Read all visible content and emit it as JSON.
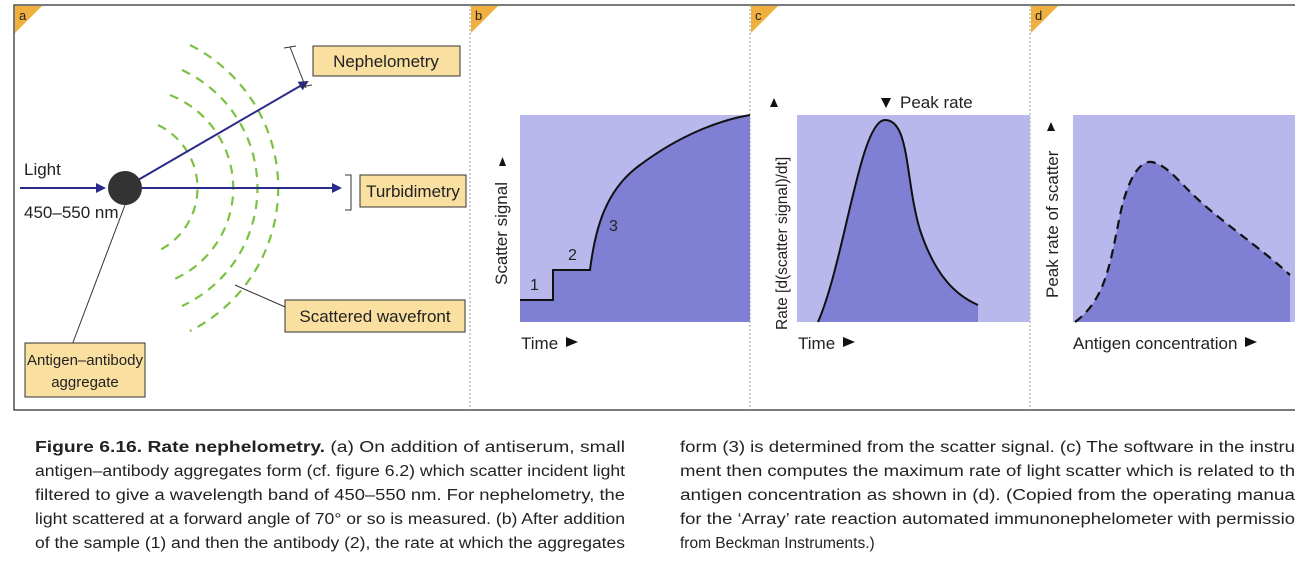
{
  "figure": {
    "panels": {
      "a": {
        "label": "a",
        "light": "Light",
        "wavelength": "450–550 nm",
        "nephelometry": "Nephelometry",
        "turbidimetry": "Turbidimetry",
        "wavefront": "Scattered wavefront",
        "aggregate": [
          "Antigen–antibody",
          "aggregate"
        ]
      },
      "b": {
        "label": "b",
        "y_axis": "Scatter signal",
        "x_axis": "Time",
        "steps": [
          "1",
          "2",
          "3"
        ]
      },
      "c": {
        "label": "c",
        "y_axis": "Rate [d(scatter signal)/dt]",
        "x_axis": "Time",
        "annotation": "Peak rate"
      },
      "d": {
        "label": "d",
        "y_axis": "Peak rate of scatter",
        "x_axis": "Antigen concentration"
      }
    },
    "caption": {
      "figure_label": "Figure 6.16.",
      "title": "Rate nephelometry.",
      "column1": [
        "(a) On addition of antiserum, small",
        "antigen–antibody aggregates form (cf. figure 6.2) which scatter incident light",
        "filtered to give a wavelength band of 450–550 nm. For nephelometry, the",
        "light scattered at a forward angle of 70° or so is measured. (b) After addition",
        "of the sample (1) and then the antibody (2), the rate at which the aggregates"
      ],
      "column2": [
        "form (3) is determined from the scatter signal. (c) The software in the instru",
        "ment then computes the maximum rate of light scatter which is related to th",
        "antigen concentration as shown in (d). (Copied from the operating manua",
        "for the ‘Array’ rate reaction automated immunonephelometer with permissio",
        "from Beckman Instruments.)"
      ]
    }
  }
}
